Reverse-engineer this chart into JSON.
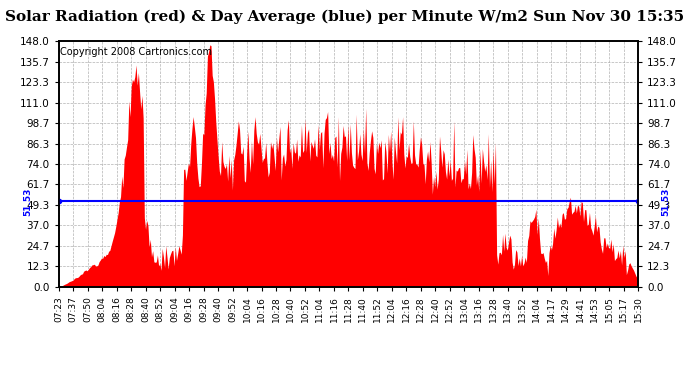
{
  "title": "Solar Radiation (red) & Day Average (blue) per Minute W/m2 Sun Nov 30 15:35",
  "copyright": "Copyright 2008 Cartronics.com",
  "avg_value": 51.53,
  "ylim": [
    0.0,
    148.0
  ],
  "yticks": [
    0.0,
    12.3,
    24.7,
    37.0,
    49.3,
    61.7,
    74.0,
    86.3,
    98.7,
    111.0,
    123.3,
    135.7,
    148.0
  ],
  "xtick_labels": [
    "07:23",
    "07:37",
    "07:50",
    "08:04",
    "08:16",
    "08:28",
    "08:40",
    "08:52",
    "09:04",
    "09:16",
    "09:28",
    "09:40",
    "09:52",
    "10:04",
    "10:16",
    "10:28",
    "10:40",
    "10:52",
    "11:04",
    "11:16",
    "11:28",
    "11:40",
    "11:52",
    "12:04",
    "12:16",
    "12:28",
    "12:40",
    "12:52",
    "13:04",
    "13:16",
    "13:28",
    "13:40",
    "13:52",
    "14:04",
    "14:17",
    "14:29",
    "14:41",
    "14:53",
    "15:05",
    "15:17",
    "15:30"
  ],
  "bar_color": "#FF0000",
  "line_color": "#0000FF",
  "background_color": "#FFFFFF",
  "grid_color": "#AAAAAA",
  "title_fontsize": 11,
  "copyright_fontsize": 7
}
